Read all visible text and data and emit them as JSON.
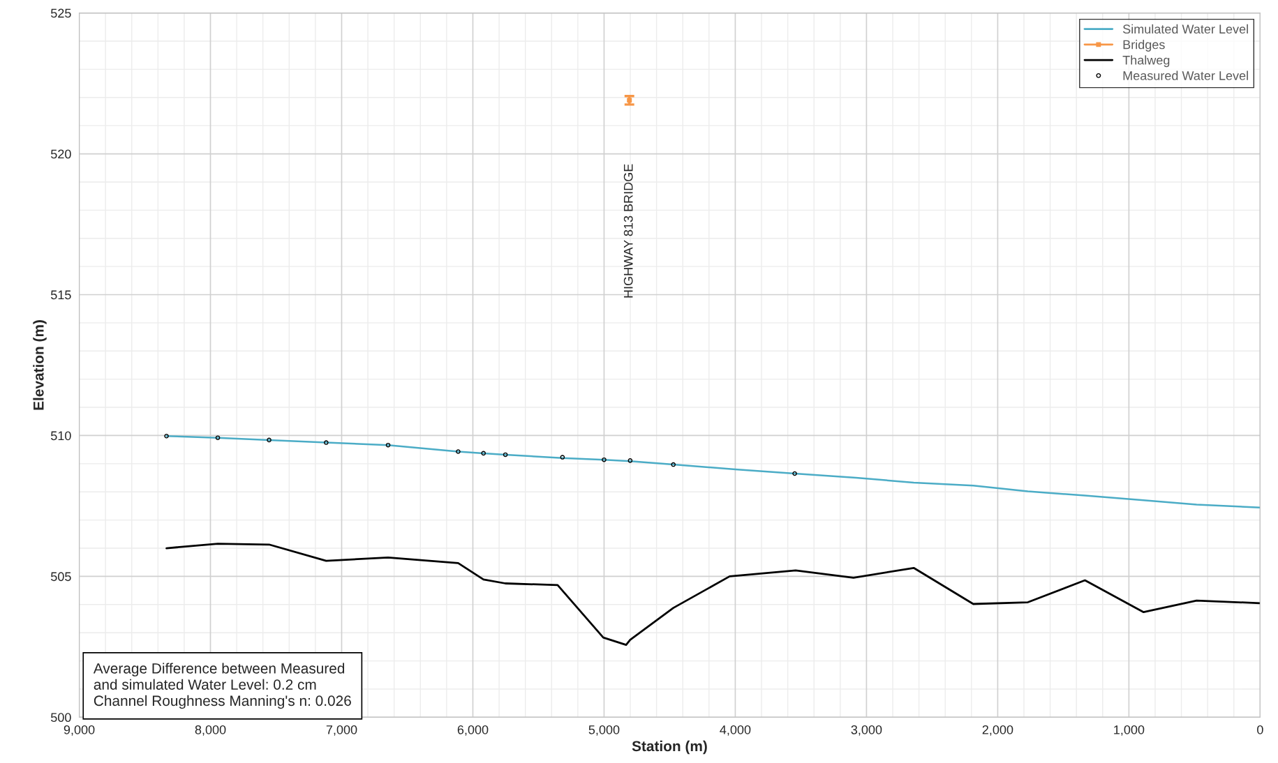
{
  "chart_data": {
    "type": "line",
    "xlabel": "Station (m)",
    "ylabel": "Elevation (m)",
    "xlim": [
      9000,
      0
    ],
    "ylim": [
      500,
      525
    ],
    "xticks": [
      {
        "value": 9000,
        "label": "9,000"
      },
      {
        "value": 8000,
        "label": "8,000"
      },
      {
        "value": 7000,
        "label": "7,000"
      },
      {
        "value": 6000,
        "label": "6,000"
      },
      {
        "value": 5000,
        "label": "5,000"
      },
      {
        "value": 4000,
        "label": "4,000"
      },
      {
        "value": 3000,
        "label": "3,000"
      },
      {
        "value": 2000,
        "label": "2,000"
      },
      {
        "value": 1000,
        "label": "1,000"
      },
      0
    ],
    "yticks": [
      500,
      505,
      510,
      515,
      520,
      525
    ],
    "grid": true,
    "legend": "top right",
    "series": [
      {
        "name": "Simulated Water Level",
        "color": "#4bacc6",
        "x": [
          8335,
          7944,
          7553,
          7118,
          6646,
          6112,
          5919,
          5752,
          5317,
          5000,
          4801,
          4472,
          4000,
          3547,
          3080,
          2640,
          2186,
          1770,
          1335,
          888,
          484,
          0
        ],
        "values": [
          509.98,
          509.92,
          509.84,
          509.75,
          509.66,
          509.43,
          509.37,
          509.32,
          509.2,
          509.14,
          509.09,
          508.97,
          508.8,
          508.65,
          508.5,
          508.33,
          508.22,
          508.02,
          507.87,
          507.7,
          507.55,
          507.44
        ]
      },
      {
        "name": "Bridges",
        "type": "scatter",
        "color": "#f79646",
        "marker": "square",
        "x": [
          4807
        ],
        "values": [
          521.9
        ],
        "errors": [
          0.15
        ]
      },
      {
        "name": "Thalweg",
        "color": "#000000",
        "x": [
          8335,
          7944,
          7553,
          7118,
          6646,
          6112,
          5919,
          5752,
          5354,
          5006,
          4832,
          4801,
          4472,
          4043,
          3540,
          3099,
          2640,
          2186,
          1770,
          1335,
          888,
          484,
          0
        ],
        "values": [
          506.0,
          506.16,
          506.13,
          505.55,
          505.67,
          505.47,
          504.89,
          504.75,
          504.69,
          502.83,
          502.57,
          502.75,
          503.88,
          505.0,
          505.21,
          504.95,
          505.3,
          504.02,
          504.08,
          504.86,
          503.73,
          504.14,
          504.05
        ]
      },
      {
        "name": "Measured Water Level",
        "type": "scatter",
        "color": "#000000",
        "marker": "circle",
        "x": [
          8335,
          7944,
          7553,
          7118,
          6646,
          6112,
          5919,
          5752,
          5317,
          5000,
          4801,
          4472,
          3547
        ],
        "values": [
          509.98,
          509.92,
          509.84,
          509.75,
          509.66,
          509.43,
          509.37,
          509.32,
          509.23,
          509.14,
          509.11,
          508.97,
          508.65
        ]
      }
    ],
    "annotations": [
      "HIGHWAY 813 BRIDGE",
      "Average Difference between Measured\nand simulated Water Level: 0.2 cm\nChannel Roughness Manning's n: 0.026"
    ]
  }
}
